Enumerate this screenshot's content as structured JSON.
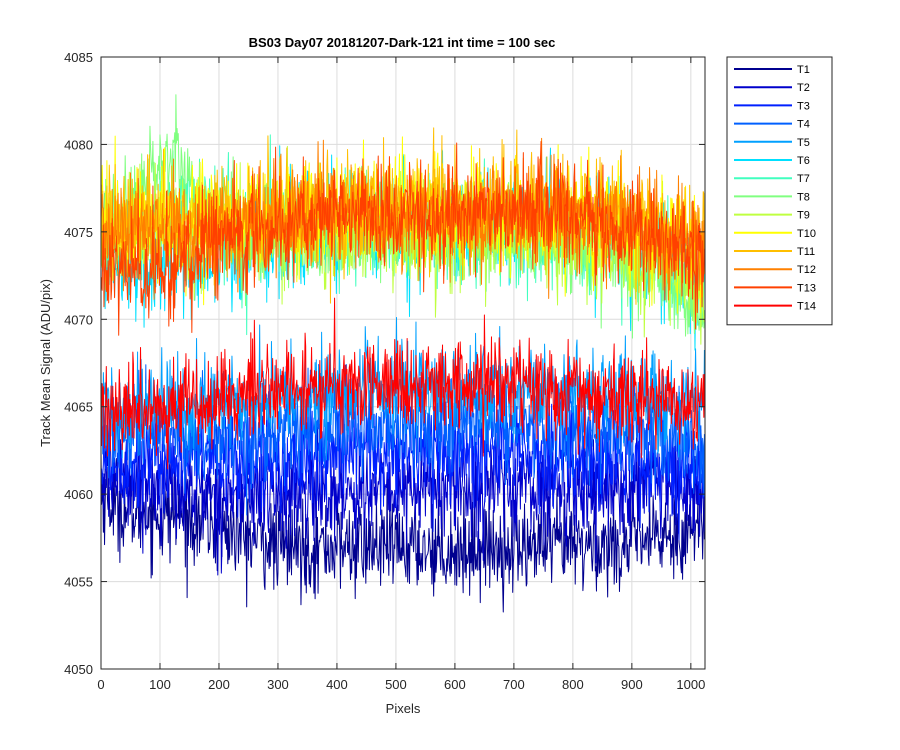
{
  "chart_data": {
    "type": "line",
    "title": "BS03 Day07 20181207-Dark-121 int time = 100 sec",
    "xlabel": "Pixels",
    "ylabel": "Track Mean Signal (ADU/pix)",
    "xlim": [
      0,
      1024
    ],
    "ylim": [
      4050,
      4085
    ],
    "xticks": [
      0,
      100,
      200,
      300,
      400,
      500,
      600,
      700,
      800,
      900,
      1000
    ],
    "yticks": [
      4050,
      4055,
      4060,
      4065,
      4070,
      4075,
      4080,
      4085
    ],
    "grid": true,
    "legend_position": "outside-right-top",
    "x": [
      0,
      25,
      50,
      75,
      100,
      125,
      150,
      175,
      200,
      250,
      300,
      350,
      400,
      450,
      500,
      550,
      600,
      650,
      700,
      750,
      800,
      850,
      900,
      950,
      1000,
      1023
    ],
    "series": [
      {
        "name": "T1",
        "color": "#00008f",
        "noise": 1.3,
        "values": [
          4060,
          4059.5,
          4059,
          4059,
          4058.8,
          4058.8,
          4058.6,
          4058.5,
          4058,
          4057.5,
          4057,
          4057,
          4057,
          4057,
          4057,
          4057,
          4056.8,
          4057,
          4057,
          4057,
          4057,
          4057,
          4057.2,
          4057.5,
          4058,
          4058.5
        ]
      },
      {
        "name": "T2",
        "color": "#0000cc",
        "noise": 1.4,
        "values": [
          4061,
          4061,
          4061,
          4060.8,
          4060.6,
          4060.5,
          4060.3,
          4060.2,
          4060,
          4060,
          4060,
          4060,
          4060.2,
          4060.2,
          4060.2,
          4060.3,
          4060.5,
          4060.5,
          4060.5,
          4060.5,
          4060.5,
          4060.5,
          4060.5,
          4060.3,
          4060,
          4060
        ]
      },
      {
        "name": "T3",
        "color": "#0020ff",
        "noise": 1.4,
        "values": [
          4062,
          4062,
          4062,
          4062,
          4062,
          4062,
          4062,
          4062,
          4062,
          4062,
          4062,
          4062,
          4062.3,
          4062.5,
          4062.5,
          4062.5,
          4062.5,
          4062.5,
          4062.5,
          4062.3,
          4062.2,
          4062,
          4061.8,
          4061.5,
          4061.3,
          4061.2
        ]
      },
      {
        "name": "T4",
        "color": "#0060ff",
        "noise": 1.4,
        "values": [
          4063.5,
          4063.5,
          4063.5,
          4063.5,
          4063.3,
          4063.3,
          4063.3,
          4063.5,
          4063.5,
          4063.5,
          4063.5,
          4063.8,
          4064,
          4064,
          4064,
          4064,
          4064,
          4064,
          4064,
          4064,
          4064,
          4063.8,
          4063.5,
          4063.2,
          4063,
          4063
        ]
      },
      {
        "name": "T5",
        "color": "#00a0ff",
        "noise": 1.3,
        "values": [
          4065,
          4065,
          4065,
          4065,
          4065,
          4065,
          4065,
          4065.2,
          4065.3,
          4065.5,
          4065.5,
          4065.5,
          4065.8,
          4066,
          4066,
          4066,
          4066,
          4066,
          4066,
          4066,
          4066,
          4065.8,
          4065.5,
          4065.5,
          4065.3,
          4065.2
        ]
      },
      {
        "name": "T6",
        "color": "#00e0ff",
        "noise": 1.5,
        "values": [
          4073.5,
          4073.3,
          4073.2,
          4073,
          4073,
          4073,
          4073,
          4073.2,
          4073.5,
          4074,
          4074.5,
          4075,
          4075.3,
          4075.5,
          4075.5,
          4075.5,
          4075.5,
          4075.8,
          4076,
          4076,
          4075.8,
          4075.3,
          4074.5,
          4073.5,
          4072.5,
          4072
        ]
      },
      {
        "name": "T7",
        "color": "#40ffbf",
        "noise": 1.4,
        "values": [
          4074,
          4074.5,
          4075,
          4075.5,
          4076,
          4076.5,
          4076,
          4075.5,
          4075,
          4075,
          4075,
          4075,
          4075,
          4075,
          4075,
          4075,
          4075,
          4075,
          4075,
          4075,
          4074.8,
          4074.5,
          4074,
          4073,
          4072,
          4071.5
        ]
      },
      {
        "name": "T8",
        "color": "#80ff80",
        "noise": 1.4,
        "values": [
          4075,
          4075.5,
          4076.5,
          4077.5,
          4079,
          4079.5,
          4078,
          4076.5,
          4075.5,
          4075,
          4075,
          4075,
          4075,
          4075,
          4075,
          4075,
          4075,
          4075,
          4075,
          4074.8,
          4074.5,
          4074,
          4073.5,
          4072.5,
          4071,
          4070.5
        ]
      },
      {
        "name": "T9",
        "color": "#bfff40",
        "noise": 1.4,
        "values": [
          4075,
          4075,
          4075,
          4075,
          4075,
          4075,
          4075,
          4075,
          4075,
          4075,
          4075,
          4075,
          4075,
          4075,
          4075,
          4075,
          4075,
          4075,
          4075,
          4074.8,
          4074.5,
          4074,
          4073.5,
          4073,
          4072,
          4071.5
        ]
      },
      {
        "name": "T10",
        "color": "#ffff00",
        "noise": 1.5,
        "values": [
          4075.5,
          4075.5,
          4075.5,
          4075.5,
          4075.5,
          4075.5,
          4075.5,
          4075.5,
          4075.8,
          4076,
          4076,
          4076,
          4076,
          4076,
          4076,
          4076,
          4076,
          4076,
          4076,
          4076,
          4076,
          4075.8,
          4075.5,
          4075,
          4074.5,
          4074
        ]
      },
      {
        "name": "T11",
        "color": "#ffbf00",
        "noise": 1.5,
        "values": [
          4075.5,
          4075.5,
          4075.5,
          4075.5,
          4075.5,
          4075.5,
          4075.5,
          4075.5,
          4075.8,
          4076,
          4076,
          4076,
          4076.2,
          4076.3,
          4076.3,
          4076.3,
          4076.3,
          4076.5,
          4076.5,
          4076.5,
          4076.3,
          4076,
          4075.5,
          4075,
          4074.5,
          4074
        ]
      },
      {
        "name": "T12",
        "color": "#ff8000",
        "noise": 1.5,
        "values": [
          4075,
          4075,
          4075,
          4075,
          4075,
          4075,
          4075,
          4075,
          4075.3,
          4075.5,
          4075.8,
          4076,
          4076,
          4076,
          4076,
          4076,
          4076,
          4076,
          4076,
          4076,
          4076,
          4075.8,
          4075.5,
          4075,
          4074.5,
          4074
        ]
      },
      {
        "name": "T13",
        "color": "#ff4000",
        "noise": 1.5,
        "values": [
          4073.5,
          4073.3,
          4073.2,
          4073,
          4073.2,
          4073.5,
          4073.8,
          4074.2,
          4074.5,
          4075,
          4075.5,
          4075.8,
          4076,
          4076,
          4076,
          4076,
          4076,
          4076,
          4076.2,
          4076.2,
          4076,
          4075.5,
          4075,
          4074.5,
          4073.8,
          4073.5
        ]
      },
      {
        "name": "T14",
        "color": "#ff0000",
        "noise": 1.3,
        "values": [
          4065,
          4065,
          4065,
          4065,
          4065,
          4065,
          4065.2,
          4065.3,
          4065.5,
          4065.8,
          4066,
          4066,
          4066.2,
          4066.3,
          4066.3,
          4066.3,
          4066.3,
          4066.3,
          4066.3,
          4066.2,
          4066,
          4065.8,
          4065.5,
          4065.3,
          4065,
          4065
        ]
      }
    ]
  }
}
